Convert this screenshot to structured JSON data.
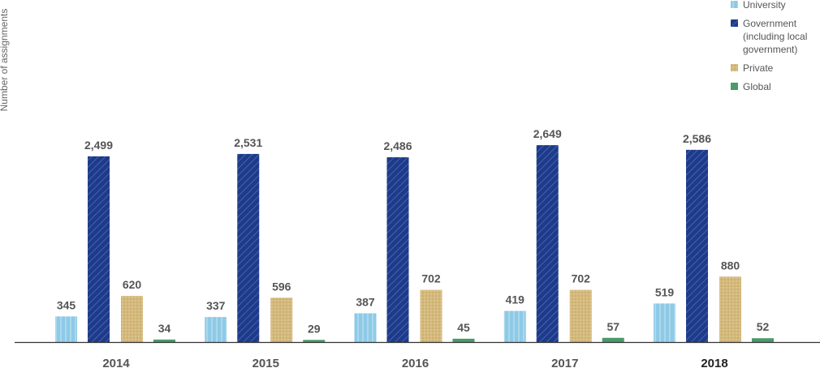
{
  "chart_data": {
    "type": "bar",
    "ylabel": "Number of assignments",
    "xlabel": "",
    "categories": [
      "2014",
      "2015",
      "2016",
      "2017",
      "2018"
    ],
    "highlight_category": "2018",
    "ylim": [
      0,
      2750
    ],
    "grid": false,
    "legend_position": "top-right",
    "series": [
      {
        "name": "University",
        "color": "#8ecae6",
        "pattern": "vertical-lines",
        "values": [
          345,
          337,
          387,
          419,
          519
        ],
        "labels": [
          "345",
          "337",
          "387",
          "419",
          "519"
        ]
      },
      {
        "name": "Government (including local government)",
        "legend_lines": [
          "Government",
          "(including local",
          "government)"
        ],
        "color": "#1e3a8a",
        "pattern": "diagonal-hatch",
        "values": [
          2499,
          2531,
          2486,
          2649,
          2586
        ],
        "labels": [
          "2,499",
          "2,531",
          "2,486",
          "2,649",
          "2,586"
        ]
      },
      {
        "name": "Private",
        "color": "#d4b97c",
        "pattern": "dots",
        "values": [
          620,
          596,
          702,
          702,
          880
        ],
        "labels": [
          "620",
          "596",
          "702",
          "702",
          "880"
        ]
      },
      {
        "name": "Global",
        "color": "#4a9a6a",
        "pattern": "solid",
        "values": [
          34,
          29,
          45,
          57,
          52
        ],
        "labels": [
          "34",
          "29",
          "45",
          "57",
          "52"
        ]
      }
    ]
  }
}
